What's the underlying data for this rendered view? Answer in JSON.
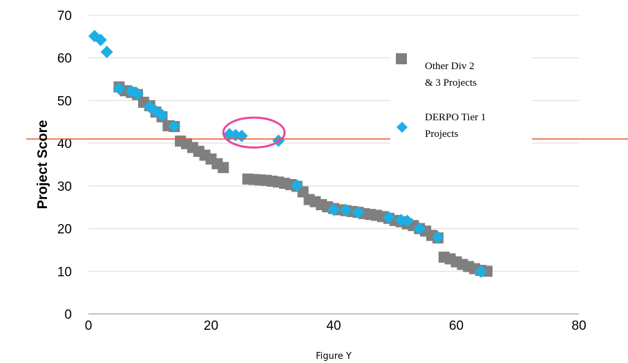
{
  "chart_data": {
    "type": "scatter",
    "title": "",
    "xlabel": "Figure Y",
    "ylabel": "Project Score",
    "xlim": [
      0,
      80
    ],
    "ylim": [
      0,
      70
    ],
    "x_ticks": [
      0,
      20,
      40,
      60,
      80
    ],
    "y_ticks": [
      0,
      10,
      20,
      30,
      40,
      50,
      60,
      70
    ],
    "grid": "horizontal",
    "legend_position": "right",
    "threshold_line": {
      "y": 41,
      "color": "#e8532b"
    },
    "highlight_ellipse": {
      "x_range": [
        22,
        32
      ],
      "y_range": [
        39,
        46
      ],
      "color": "#e8489c"
    },
    "series": [
      {
        "name": "Other Div 2 & 3 Projects",
        "marker": "square",
        "color": "#7f7f7f",
        "points": [
          [
            5,
            53.2
          ],
          [
            6,
            52.3
          ],
          [
            7,
            51.9
          ],
          [
            8,
            51.4
          ],
          [
            9,
            49.6
          ],
          [
            10,
            48.8
          ],
          [
            11,
            47.3
          ],
          [
            12,
            46.2
          ],
          [
            13,
            44.1
          ],
          [
            14,
            43.9
          ],
          [
            15,
            40.5
          ],
          [
            16,
            39.9
          ],
          [
            17,
            39.0
          ],
          [
            18,
            38.1
          ],
          [
            19,
            37.2
          ],
          [
            20,
            36.3
          ],
          [
            21,
            35.2
          ],
          [
            22,
            34.3
          ],
          [
            26,
            31.6
          ],
          [
            27,
            31.5
          ],
          [
            28,
            31.4
          ],
          [
            29,
            31.3
          ],
          [
            30,
            31.1
          ],
          [
            31,
            30.9
          ],
          [
            32,
            30.6
          ],
          [
            33,
            30.3
          ],
          [
            34,
            29.9
          ],
          [
            35,
            28.6
          ],
          [
            36,
            26.8
          ],
          [
            37,
            26.3
          ],
          [
            38,
            25.6
          ],
          [
            39,
            25.1
          ],
          [
            40,
            24.7
          ],
          [
            41,
            24.4
          ],
          [
            42,
            24.2
          ],
          [
            43,
            24.0
          ],
          [
            44,
            23.8
          ],
          [
            45,
            23.5
          ],
          [
            46,
            23.3
          ],
          [
            47,
            23.1
          ],
          [
            48,
            22.8
          ],
          [
            49,
            22.4
          ],
          [
            50,
            21.9
          ],
          [
            51,
            21.6
          ],
          [
            52,
            21.1
          ],
          [
            53,
            20.7
          ],
          [
            54,
            20.0
          ],
          [
            55,
            19.4
          ],
          [
            56,
            18.4
          ],
          [
            57,
            17.8
          ],
          [
            58,
            13.3
          ],
          [
            59,
            12.9
          ],
          [
            60,
            12.2
          ],
          [
            61,
            11.6
          ],
          [
            62,
            11.1
          ],
          [
            63,
            10.6
          ],
          [
            64,
            10.2
          ],
          [
            65,
            10.0
          ]
        ]
      },
      {
        "name": "DERPO Tier 1 Projects",
        "marker": "diamond",
        "color": "#1eaee6",
        "points": [
          [
            1,
            65.1
          ],
          [
            2,
            64.2
          ],
          [
            3,
            61.4
          ],
          [
            5,
            52.8
          ],
          [
            7,
            52.2
          ],
          [
            8,
            51.6
          ],
          [
            10,
            48.5
          ],
          [
            11,
            47.5
          ],
          [
            12,
            46.6
          ],
          [
            14,
            44.0
          ],
          [
            23,
            42.1
          ],
          [
            24,
            41.9
          ],
          [
            25,
            41.7
          ],
          [
            31,
            40.6
          ],
          [
            34,
            30.1
          ],
          [
            40,
            24.4
          ],
          [
            42,
            24.3
          ],
          [
            44,
            23.8
          ],
          [
            49,
            22.6
          ],
          [
            51,
            22.0
          ],
          [
            52,
            21.8
          ],
          [
            54,
            20.0
          ],
          [
            57,
            18.0
          ],
          [
            64,
            9.9
          ]
        ]
      }
    ]
  }
}
